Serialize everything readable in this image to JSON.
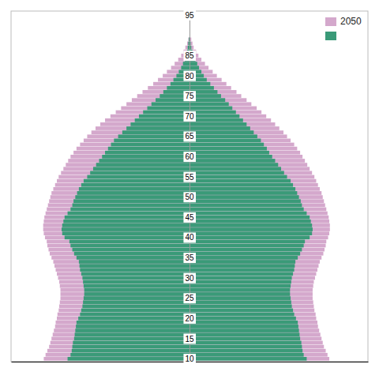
{
  "chart_data": {
    "type": "bar",
    "orientation": "horizontal",
    "categories": [
      10,
      11,
      12,
      13,
      14,
      15,
      16,
      17,
      18,
      19,
      20,
      21,
      22,
      23,
      24,
      25,
      26,
      27,
      28,
      29,
      30,
      31,
      32,
      33,
      34,
      35,
      36,
      37,
      38,
      39,
      40,
      41,
      42,
      43,
      44,
      45,
      46,
      47,
      48,
      49,
      50,
      51,
      52,
      53,
      54,
      55,
      56,
      57,
      58,
      59,
      60,
      61,
      62,
      63,
      64,
      65,
      66,
      67,
      68,
      69,
      70,
      71,
      72,
      73,
      74,
      75,
      76,
      77,
      78,
      79,
      80,
      81,
      82,
      83,
      84,
      85,
      86,
      87,
      88,
      89
    ],
    "series": [
      {
        "name": "2050",
        "color": "#d4a8cc",
        "values": [
          -2.45,
          -2.42,
          -2.39,
          -2.36,
          -2.34,
          -2.32,
          -2.3,
          -2.28,
          -2.26,
          -2.25,
          -2.23,
          -2.22,
          -2.2,
          -2.19,
          -2.18,
          -2.17,
          -2.17,
          -2.17,
          -2.18,
          -2.19,
          -2.21,
          -2.23,
          -2.25,
          -2.27,
          -2.29,
          -2.32,
          -2.35,
          -2.37,
          -2.39,
          -2.4,
          -2.43,
          -2.45,
          -2.46,
          -2.46,
          -2.45,
          -2.44,
          -2.42,
          -2.4,
          -2.38,
          -2.36,
          -2.34,
          -2.32,
          -2.29,
          -2.26,
          -2.23,
          -2.2,
          -2.16,
          -2.12,
          -2.08,
          -2.04,
          -2.0,
          -1.95,
          -1.9,
          -1.84,
          -1.78,
          -1.72,
          -1.65,
          -1.58,
          -1.5,
          -1.42,
          -1.33,
          -1.24,
          -1.15,
          -1.06,
          -0.97,
          -0.88,
          -0.79,
          -0.7,
          -0.61,
          -0.53,
          -0.45,
          -0.38,
          -0.31,
          -0.25,
          -0.19,
          -0.14,
          -0.1,
          -0.07,
          -0.04,
          -0.02
        ]
      },
      {
        "name": "2050",
        "color": "#d4a8cc",
        "values": [
          2.35,
          2.32,
          2.29,
          2.26,
          2.24,
          2.22,
          2.2,
          2.18,
          2.16,
          2.15,
          2.13,
          2.12,
          2.1,
          2.09,
          2.08,
          2.07,
          2.07,
          2.07,
          2.08,
          2.09,
          2.11,
          2.13,
          2.15,
          2.17,
          2.19,
          2.22,
          2.25,
          2.27,
          2.29,
          2.3,
          2.33,
          2.35,
          2.36,
          2.36,
          2.35,
          2.34,
          2.32,
          2.3,
          2.28,
          2.26,
          2.24,
          2.22,
          2.19,
          2.16,
          2.13,
          2.1,
          2.06,
          2.02,
          1.98,
          1.94,
          1.9,
          1.86,
          1.81,
          1.76,
          1.7,
          1.64,
          1.58,
          1.51,
          1.44,
          1.37,
          1.29,
          1.21,
          1.13,
          1.04,
          0.96,
          0.87,
          0.79,
          0.7,
          0.62,
          0.54,
          0.46,
          0.39,
          0.32,
          0.26,
          0.2,
          0.15,
          0.11,
          0.07,
          0.05,
          0.03
        ]
      },
      {
        "color": "#3a9a78",
        "values": [
          -2.05,
          -2.0,
          -1.98,
          -1.97,
          -1.96,
          -1.94,
          -1.93,
          -1.92,
          -1.91,
          -1.9,
          -1.87,
          -1.84,
          -1.82,
          -1.8,
          -1.79,
          -1.78,
          -1.77,
          -1.77,
          -1.78,
          -1.79,
          -1.8,
          -1.82,
          -1.84,
          -1.85,
          -1.86,
          -1.9,
          -1.94,
          -1.97,
          -2.0,
          -2.02,
          -2.1,
          -2.14,
          -2.15,
          -2.14,
          -2.12,
          -2.1,
          -2.05,
          -2.0,
          -1.97,
          -1.95,
          -1.92,
          -1.89,
          -1.86,
          -1.82,
          -1.78,
          -1.72,
          -1.67,
          -1.62,
          -1.57,
          -1.52,
          -1.47,
          -1.42,
          -1.37,
          -1.32,
          -1.27,
          -1.2,
          -1.13,
          -1.06,
          -0.99,
          -0.92,
          -0.85,
          -0.78,
          -0.71,
          -0.64,
          -0.57,
          -0.5,
          -0.44,
          -0.38,
          -0.32,
          -0.27,
          -0.22,
          -0.18,
          -0.14,
          -0.11,
          -0.08,
          -0.06,
          -0.04,
          -0.03,
          -0.02,
          -0.01
        ]
      },
      {
        "color": "#3a9a78",
        "values": [
          1.97,
          1.92,
          1.9,
          1.89,
          1.88,
          1.86,
          1.85,
          1.84,
          1.83,
          1.82,
          1.79,
          1.76,
          1.74,
          1.72,
          1.71,
          1.7,
          1.69,
          1.69,
          1.7,
          1.71,
          1.72,
          1.74,
          1.76,
          1.77,
          1.78,
          1.82,
          1.86,
          1.89,
          1.92,
          1.94,
          2.02,
          2.06,
          2.07,
          2.06,
          2.04,
          2.02,
          1.97,
          1.92,
          1.89,
          1.87,
          1.84,
          1.81,
          1.78,
          1.74,
          1.7,
          1.64,
          1.59,
          1.54,
          1.49,
          1.44,
          1.39,
          1.34,
          1.3,
          1.25,
          1.2,
          1.14,
          1.08,
          1.02,
          0.96,
          0.9,
          0.84,
          0.78,
          0.72,
          0.66,
          0.6,
          0.53,
          0.47,
          0.41,
          0.35,
          0.29,
          0.24,
          0.2,
          0.16,
          0.13,
          0.1,
          0.07,
          0.05,
          0.03,
          0.02,
          0.01
        ]
      }
    ],
    "xlim": [
      -3,
      3
    ],
    "xticks": [],
    "ylim": [
      9.3,
      96
    ],
    "yticks": [
      10,
      15,
      20,
      25,
      30,
      35,
      40,
      45,
      50,
      55,
      60,
      65,
      70,
      75,
      80,
      85,
      95
    ],
    "tick_labels": "y",
    "grid": false,
    "legend": "upper right"
  }
}
